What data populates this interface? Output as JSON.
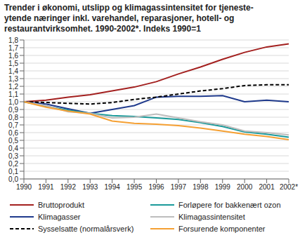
{
  "chart_data": {
    "type": "line",
    "title": "Trender i økonomi, utslipp og klimagassintensitet for tjeneste-\nytende næringer inkl. varehandel, reparasjoner, hotell- og\nrestaurantvirksomhet. 1990-2002*. Indeks 1990=1",
    "categories": [
      "1990",
      "1991",
      "1992",
      "1993",
      "1994",
      "1995",
      "1996",
      "1997",
      "1998",
      "1999",
      "2000",
      "2001",
      "2002*"
    ],
    "series": [
      {
        "name": "Bruttoprodukt",
        "color": "#a3201f",
        "line_style": "solid",
        "values": [
          1.0,
          1.02,
          1.06,
          1.09,
          1.14,
          1.19,
          1.26,
          1.36,
          1.45,
          1.55,
          1.64,
          1.71,
          1.75
        ]
      },
      {
        "name": "Klimagasser",
        "color": "#1f3a8c",
        "line_style": "solid",
        "values": [
          1.0,
          0.97,
          0.91,
          0.85,
          0.9,
          0.95,
          1.06,
          1.07,
          1.07,
          1.08,
          1.0,
          1.02,
          1.0
        ]
      },
      {
        "name": "Sysselsatte (normalårsverk)",
        "color": "#000000",
        "line_style": "dashed",
        "values": [
          1.0,
          0.99,
          0.98,
          0.97,
          0.99,
          1.03,
          1.06,
          1.1,
          1.14,
          1.17,
          1.21,
          1.22,
          1.22
        ]
      },
      {
        "name": "Forløpere for bakkenært ozon",
        "color": "#1a9a9a",
        "line_style": "solid",
        "values": [
          1.0,
          0.94,
          0.89,
          0.85,
          0.82,
          0.81,
          0.79,
          0.77,
          0.73,
          0.68,
          0.61,
          0.58,
          0.54
        ]
      },
      {
        "name": "Klimagassintensitet",
        "color": "#bdbdbd",
        "line_style": "solid",
        "values": [
          1.0,
          0.95,
          0.87,
          0.85,
          0.79,
          0.8,
          0.84,
          0.79,
          0.74,
          0.7,
          0.62,
          0.6,
          0.57
        ]
      },
      {
        "name": "Forsurende komponenter",
        "color": "#f5a033",
        "line_style": "solid",
        "values": [
          1.0,
          0.93,
          0.88,
          0.84,
          0.75,
          0.72,
          0.71,
          0.69,
          0.66,
          0.62,
          0.58,
          0.55,
          0.51
        ]
      }
    ],
    "ylim": [
      0,
      1.8
    ],
    "yticks": [
      {
        "value": 0,
        "label": "0,0"
      },
      {
        "value": 0.1,
        "label": "0,1"
      },
      {
        "value": 0.2,
        "label": "0,2"
      },
      {
        "value": 0.3,
        "label": "0,3"
      },
      {
        "value": 0.4,
        "label": "0,4"
      },
      {
        "value": 0.5,
        "label": "0,5"
      },
      {
        "value": 0.6,
        "label": "0,6"
      },
      {
        "value": 0.7,
        "label": "0,7"
      },
      {
        "value": 0.8,
        "label": "0,8"
      },
      {
        "value": 0.9,
        "label": "0,9"
      },
      {
        "value": 1.0,
        "label": "1,0"
      },
      {
        "value": 1.1,
        "label": "1,1"
      },
      {
        "value": 1.2,
        "label": "1,2"
      },
      {
        "value": 1.3,
        "label": "1,3"
      },
      {
        "value": 1.4,
        "label": "1,4"
      },
      {
        "value": 1.5,
        "label": "1,5"
      },
      {
        "value": 1.6,
        "label": "1,6"
      },
      {
        "value": 1.7,
        "label": "1,7"
      },
      {
        "value": 1.8,
        "label": "1,8"
      }
    ],
    "grid": true,
    "legend": "bottom"
  }
}
